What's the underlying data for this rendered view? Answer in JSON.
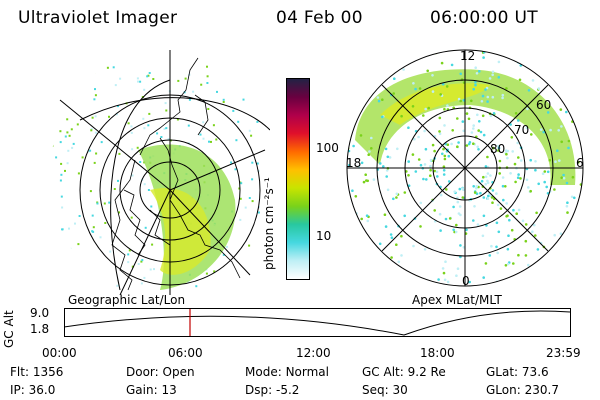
{
  "header": {
    "instrument": "Ultraviolet Imager",
    "date": "04 Feb 00",
    "time": "06:00:00 UT"
  },
  "colorbar": {
    "unit_label": "photon cm⁻²s⁻¹",
    "ticks": [
      "100",
      "10"
    ],
    "colors": [
      "#222244",
      "#6a0040",
      "#b0004a",
      "#e0102a",
      "#ff6a00",
      "#ffc000",
      "#c8e400",
      "#7ad21a",
      "#28c8a0",
      "#46d8e0",
      "#bfeff5",
      "#ffffff"
    ]
  },
  "left_panel": {
    "caption": "Geographic Lat/Lon"
  },
  "right_panel": {
    "caption": "Apex  MLat/MLT",
    "mlt_labels": {
      "top": "12",
      "bottom": "0",
      "left": "18",
      "right": "6"
    },
    "lat_labels": [
      "60",
      "70",
      "80"
    ]
  },
  "timeline": {
    "ylabel": "GC Alt",
    "y_ticks": [
      "9.0",
      "1.8"
    ],
    "x_ticks": [
      "00:00",
      "06:00",
      "12:00",
      "18:00",
      "23:59"
    ],
    "current_time": "06:00"
  },
  "footer": {
    "row1": [
      {
        "label": "Flt:",
        "value": "1356"
      },
      {
        "label": "Door:",
        "value": "Open"
      },
      {
        "label": "Mode:",
        "value": "Normal"
      },
      {
        "label": "GC Alt:",
        "value": "9.2 Re"
      },
      {
        "label": "GLat:",
        "value": "73.6"
      }
    ],
    "row2": [
      {
        "label": "IP:",
        "value": "36.0"
      },
      {
        "label": "Gain:",
        "value": "13"
      },
      {
        "label": "Dsp:",
        "value": "-5.2"
      },
      {
        "label": "Seq:",
        "value": "30"
      },
      {
        "label": "GLon:",
        "value": "230.7"
      }
    ]
  },
  "accent_colors": {
    "marker": "#c00000",
    "aurora_green": "#7ad21a",
    "aurora_cyan": "#46d8e0"
  }
}
